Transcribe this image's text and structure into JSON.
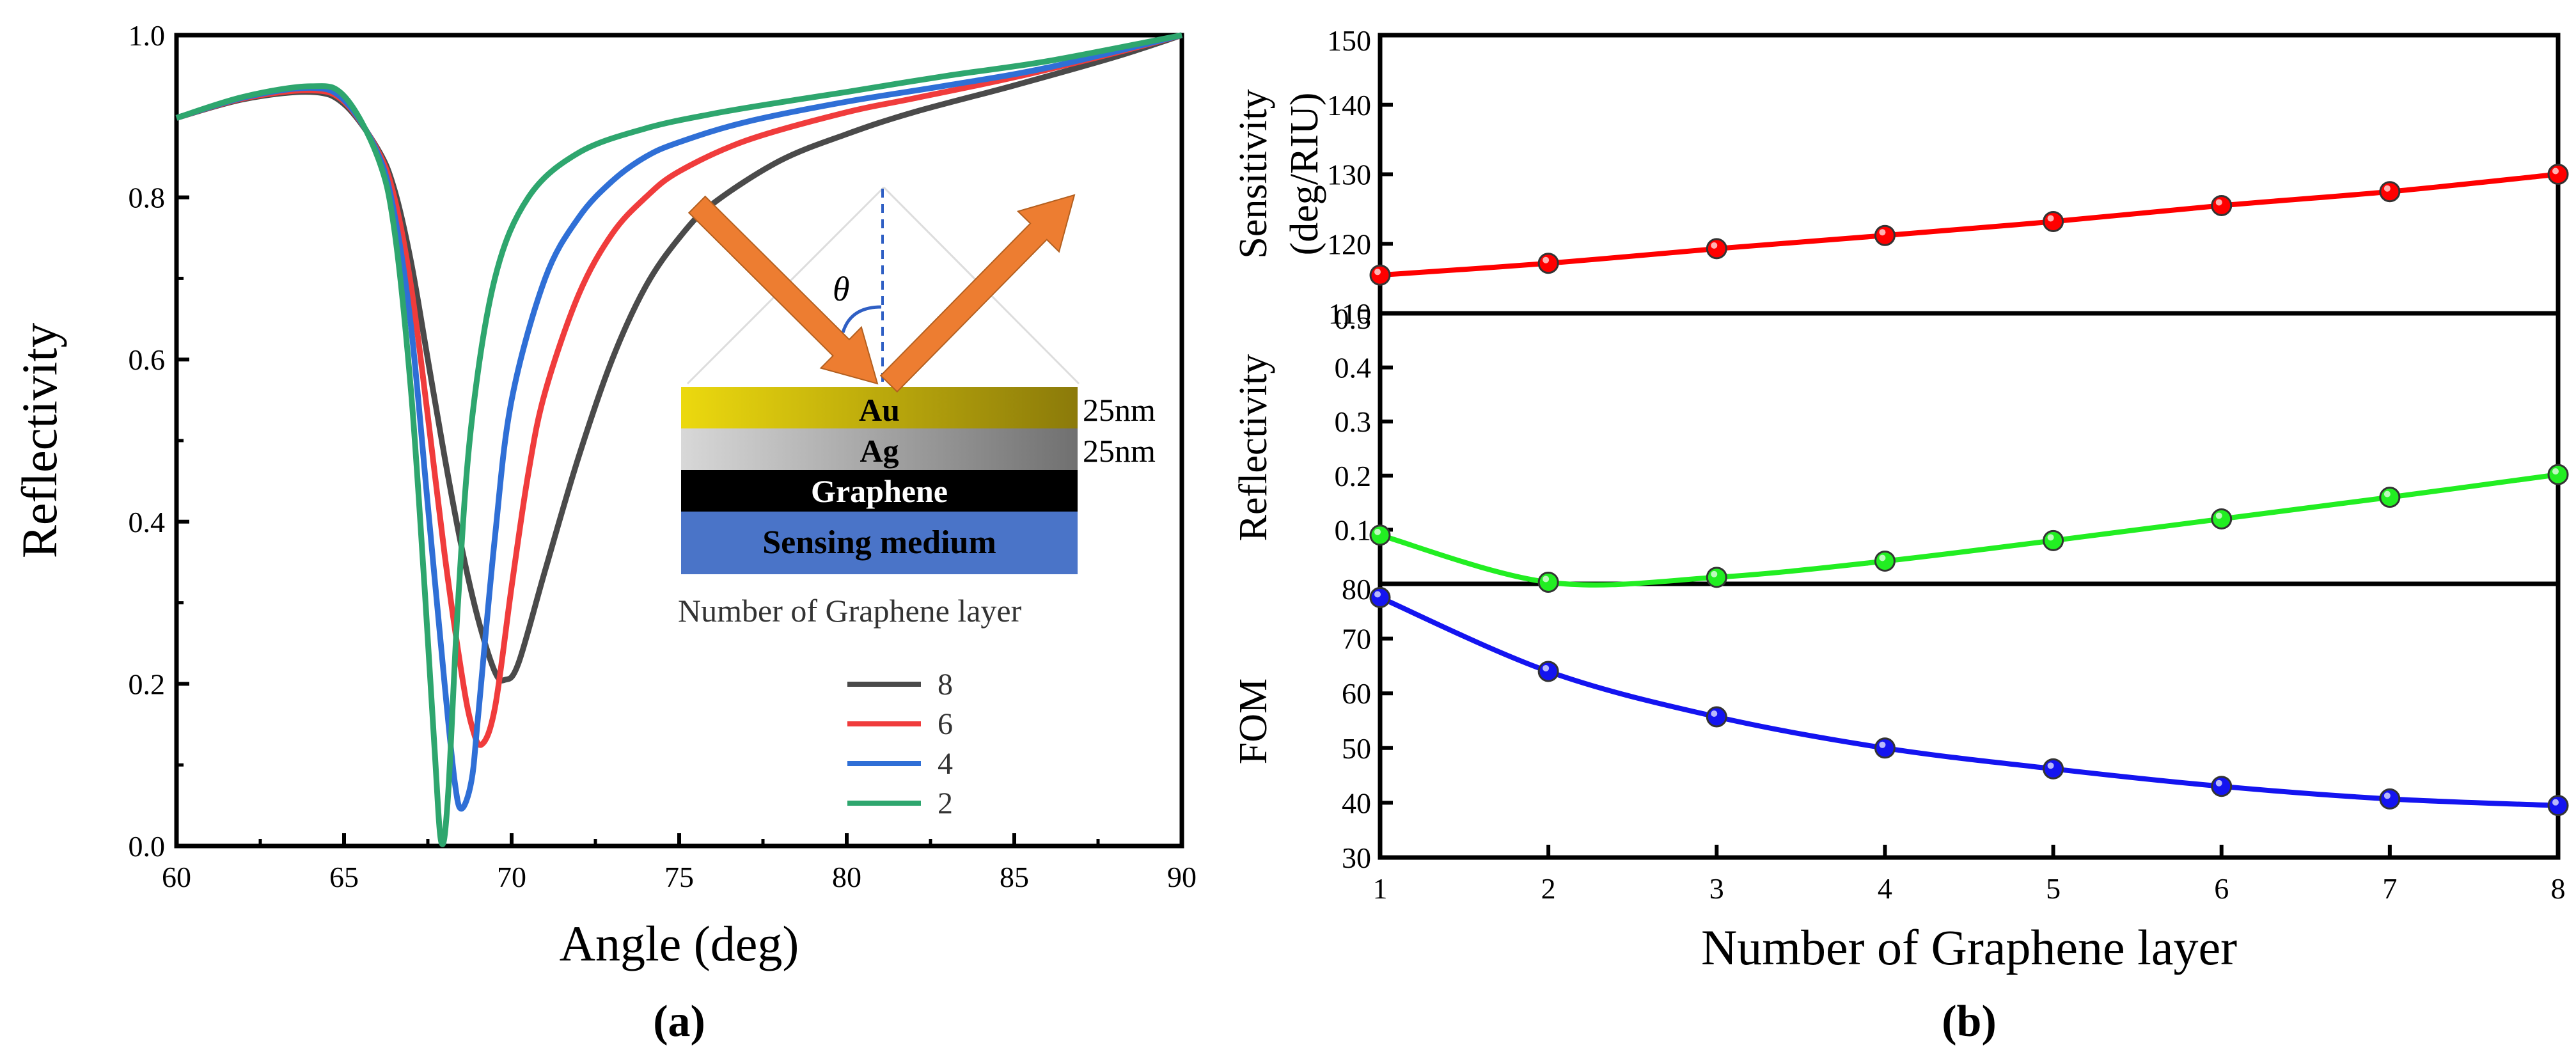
{
  "chart_data": [
    {
      "id": "a",
      "panel_label": "(a)",
      "type": "line",
      "xlabel": "Angle (deg)",
      "ylabel": "Reflectivity",
      "xlim": [
        60,
        90
      ],
      "ylim": [
        0.0,
        1.0
      ],
      "xticks": [
        60,
        65,
        70,
        75,
        80,
        85,
        90
      ],
      "yticks": [
        "0.0",
        "0.2",
        "0.4",
        "0.6",
        "0.8",
        "1.0"
      ],
      "grid": false,
      "legend": {
        "position": "bottom-right",
        "title": "Number of Graphene layer"
      },
      "series": [
        {
          "name": "8",
          "color": "#4a4a4a",
          "points": [
            [
              60,
              0.898
            ],
            [
              62,
              0.921
            ],
            [
              64,
              0.93
            ],
            [
              65,
              0.915
            ],
            [
              66,
              0.86
            ],
            [
              66.5,
              0.81
            ],
            [
              67,
              0.72
            ],
            [
              67.5,
              0.6
            ],
            [
              68,
              0.48
            ],
            [
              68.5,
              0.37
            ],
            [
              69,
              0.28
            ],
            [
              69.5,
              0.215
            ],
            [
              69.8,
              0.205
            ],
            [
              70.2,
              0.225
            ],
            [
              71,
              0.34
            ],
            [
              72,
              0.48
            ],
            [
              73,
              0.6
            ],
            [
              74,
              0.69
            ],
            [
              75,
              0.75
            ],
            [
              76,
              0.792
            ],
            [
              78,
              0.845
            ],
            [
              80,
              0.878
            ],
            [
              82,
              0.905
            ],
            [
              85,
              0.938
            ],
            [
              88,
              0.973
            ],
            [
              90,
              1.0
            ]
          ]
        },
        {
          "name": "6",
          "color": "#f03c3c",
          "points": [
            [
              60,
              0.898
            ],
            [
              62,
              0.922
            ],
            [
              64,
              0.932
            ],
            [
              65,
              0.918
            ],
            [
              66,
              0.858
            ],
            [
              66.5,
              0.8
            ],
            [
              67,
              0.69
            ],
            [
              67.5,
              0.53
            ],
            [
              68,
              0.36
            ],
            [
              68.5,
              0.215
            ],
            [
              68.8,
              0.15
            ],
            [
              69.1,
              0.125
            ],
            [
              69.5,
              0.17
            ],
            [
              70,
              0.32
            ],
            [
              70.5,
              0.46
            ],
            [
              71,
              0.56
            ],
            [
              72,
              0.68
            ],
            [
              73,
              0.755
            ],
            [
              74,
              0.8
            ],
            [
              75,
              0.832
            ],
            [
              77,
              0.87
            ],
            [
              80,
              0.905
            ],
            [
              82,
              0.922
            ],
            [
              85,
              0.948
            ],
            [
              88,
              0.978
            ],
            [
              90,
              1.0
            ]
          ]
        },
        {
          "name": "4",
          "color": "#2f6fd6",
          "points": [
            [
              60,
              0.898
            ],
            [
              62,
              0.923
            ],
            [
              64,
              0.935
            ],
            [
              65,
              0.92
            ],
            [
              66,
              0.855
            ],
            [
              66.5,
              0.78
            ],
            [
              67,
              0.64
            ],
            [
              67.5,
              0.42
            ],
            [
              68,
              0.2
            ],
            [
              68.3,
              0.08
            ],
            [
              68.5,
              0.046
            ],
            [
              68.8,
              0.08
            ],
            [
              69,
              0.16
            ],
            [
              69.5,
              0.38
            ],
            [
              70,
              0.55
            ],
            [
              71,
              0.7
            ],
            [
              72,
              0.775
            ],
            [
              73,
              0.82
            ],
            [
              74,
              0.85
            ],
            [
              75,
              0.868
            ],
            [
              77,
              0.893
            ],
            [
              80,
              0.918
            ],
            [
              83,
              0.938
            ],
            [
              86,
              0.96
            ],
            [
              90,
              1.0
            ]
          ]
        },
        {
          "name": "2",
          "color": "#2ea66e",
          "points": [
            [
              60,
              0.898
            ],
            [
              62,
              0.924
            ],
            [
              64,
              0.937
            ],
            [
              65,
              0.925
            ],
            [
              66,
              0.85
            ],
            [
              66.5,
              0.76
            ],
            [
              67,
              0.56
            ],
            [
              67.4,
              0.32
            ],
            [
              67.7,
              0.12
            ],
            [
              67.9,
              0.005
            ],
            [
              68.1,
              0.06
            ],
            [
              68.4,
              0.3
            ],
            [
              68.8,
              0.52
            ],
            [
              69.5,
              0.7
            ],
            [
              70.5,
              0.8
            ],
            [
              72,
              0.855
            ],
            [
              74,
              0.885
            ],
            [
              76,
              0.903
            ],
            [
              78,
              0.917
            ],
            [
              80,
              0.93
            ],
            [
              83,
              0.95
            ],
            [
              86,
              0.968
            ],
            [
              90,
              1.0
            ]
          ]
        }
      ],
      "inset": {
        "incidence_symbol": "θ",
        "layers": [
          {
            "label": "Au",
            "thickness": "25nm",
            "color_start": "#ecd90e",
            "color_end": "#8b7a0a"
          },
          {
            "label": "Ag",
            "thickness": "25nm",
            "color_start": "#d8d8d8",
            "color_end": "#707070"
          },
          {
            "label": "Graphene",
            "color_start": "#000000",
            "color_end": "#000000"
          },
          {
            "label": "Sensing medium",
            "color_start": "#4a74c8",
            "color_end": "#4a74c8"
          }
        ],
        "arrow_color": "#ed7d31"
      }
    },
    {
      "id": "b",
      "panel_label": "(b)",
      "type": "line",
      "xlabel": "Number of Graphene layer",
      "xlim": [
        1,
        8
      ],
      "xticks": [
        1,
        2,
        3,
        4,
        5,
        6,
        7,
        8
      ],
      "grid": false,
      "subplots": [
        {
          "ylabel": "Sensitivity",
          "ylabel2": "(deg/RIU)",
          "color": "#ff0000",
          "ylim": [
            110,
            150
          ],
          "yticks": [
            "110",
            "120",
            "130",
            "140",
            "150"
          ],
          "x": [
            1,
            2,
            3,
            4,
            5,
            6,
            7,
            8
          ],
          "values": [
            115.5,
            117.2,
            119.3,
            121.2,
            123.2,
            125.5,
            127.5,
            130.0
          ]
        },
        {
          "ylabel": "Reflectivity",
          "color": "#22ee22",
          "ylim": [
            0.0,
            0.5
          ],
          "yticks": [
            "0.1",
            "0.2",
            "0.3",
            "0.4",
            "0.5"
          ],
          "x": [
            1,
            2,
            3,
            4,
            5,
            6,
            7,
            8
          ],
          "values": [
            0.09,
            0.003,
            0.012,
            0.042,
            0.08,
            0.12,
            0.16,
            0.202
          ]
        },
        {
          "ylabel": "FOM",
          "color": "#1414f0",
          "ylim": [
            30,
            80
          ],
          "yticks": [
            "30",
            "40",
            "50",
            "60",
            "70",
            "80"
          ],
          "x": [
            1,
            2,
            3,
            4,
            5,
            6,
            7,
            8
          ],
          "values": [
            77.5,
            64.0,
            55.7,
            50.0,
            46.2,
            43.0,
            40.7,
            39.5
          ]
        }
      ]
    }
  ]
}
